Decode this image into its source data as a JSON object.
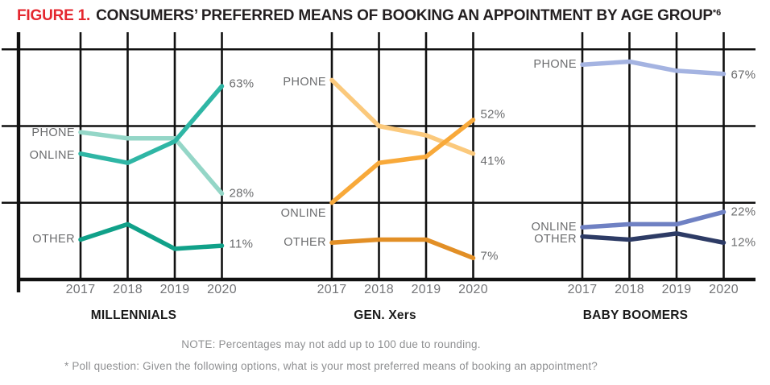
{
  "title": {
    "figure_label": "FIGURE 1.",
    "text": "CONSUMERS’ PREFERRED MEANS OF BOOKING AN APPOINTMENT BY AGE GROUP",
    "superscript": "*6"
  },
  "notes": {
    "line1": "NOTE: Percentages may not add up to 100 due to rounding.",
    "line2": "* Poll question: Given the following options, what is your most preferred means of booking an appointment?"
  },
  "colors": {
    "background": "#ffffff",
    "grid": "#111111",
    "figure_label_red": "#e4262e",
    "title_black": "#231f20",
    "series_label_gray": "#6b6c6e",
    "year_label_gray": "#747578",
    "note_gray": "#8f9092"
  },
  "chart_data": {
    "type": "line",
    "unit": "percent",
    "categories": [
      "2017",
      "2018",
      "2019",
      "2020"
    ],
    "y_axis": {
      "min": 0,
      "max": 75,
      "gridline_values": [
        25,
        50,
        75
      ],
      "tick_labels_visible": false,
      "grid": true
    },
    "legend_position": "inline-left-of-first-point",
    "groups": [
      {
        "title": "MILLENNIALS",
        "series": [
          {
            "name": "PHONE",
            "values": [
              48,
              46,
              46,
              28
            ],
            "color": "#94d6c7",
            "end_label": "28%"
          },
          {
            "name": "ONLINE",
            "values": [
              41,
              38,
              45,
              63
            ],
            "color": "#2fb6a5",
            "end_label": "63%"
          },
          {
            "name": "OTHER",
            "values": [
              13,
              18,
              10,
              11
            ],
            "color": "#10a189",
            "end_label": "11%"
          }
        ]
      },
      {
        "title": "GEN. Xers",
        "series": [
          {
            "name": "PHONE",
            "values": [
              65,
              50,
              47,
              41
            ],
            "color": "#fbc97c",
            "end_label": "41%"
          },
          {
            "name": "ONLINE",
            "values": [
              25,
              38,
              40,
              52
            ],
            "color": "#f8a93a",
            "end_label": "52%"
          },
          {
            "name": "OTHER",
            "values": [
              12,
              13,
              13,
              7
            ],
            "color": "#e28f26",
            "end_label": "7%"
          }
        ]
      },
      {
        "title": "BABY BOOMERS",
        "series": [
          {
            "name": "PHONE",
            "values": [
              70,
              71,
              68,
              67
            ],
            "color": "#a4b3e1",
            "end_label": "67%"
          },
          {
            "name": "ONLINE",
            "values": [
              17,
              18,
              18,
              22
            ],
            "color": "#6f81c3",
            "end_label": "22%"
          },
          {
            "name": "OTHER",
            "values": [
              14,
              13,
              15,
              12
            ],
            "color": "#2d3b65",
            "end_label": "12%"
          }
        ]
      }
    ]
  }
}
